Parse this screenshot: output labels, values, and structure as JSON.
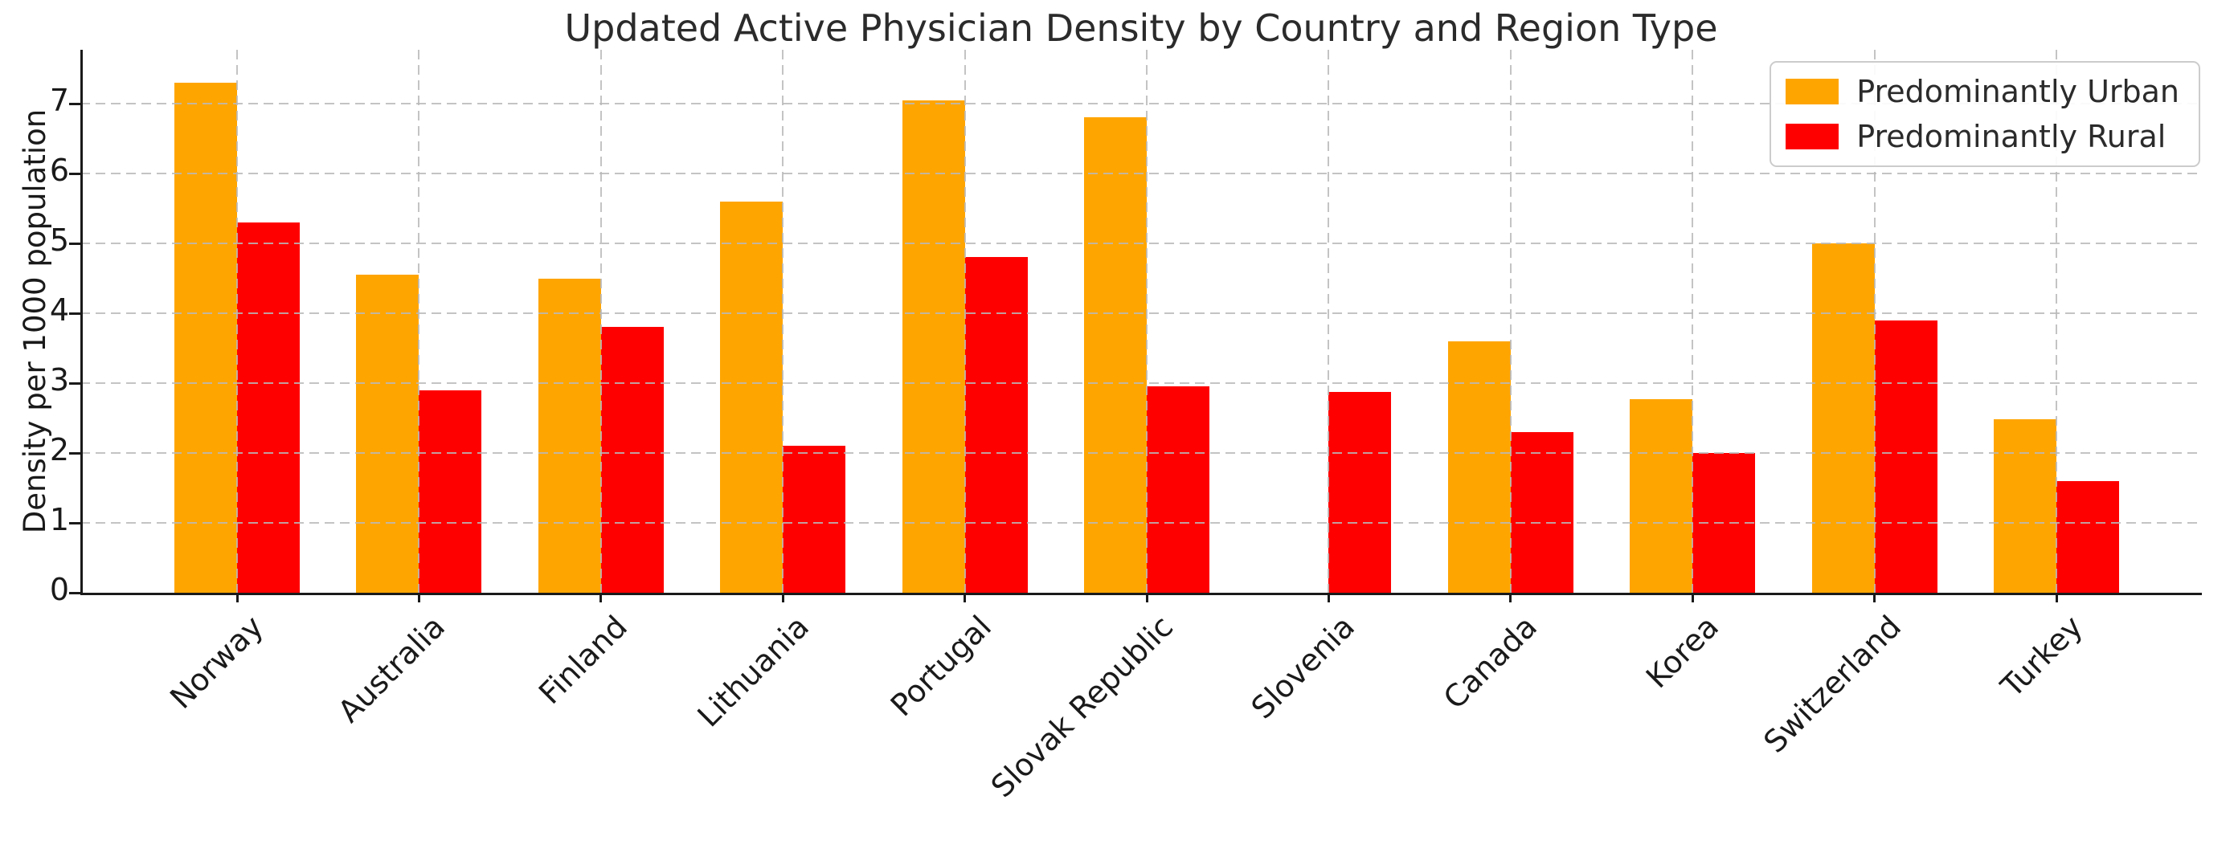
{
  "chart_data": {
    "type": "bar",
    "title": "Updated Active Physician Density by Country and Region Type",
    "xlabel": "",
    "ylabel": "Density per 1000 population",
    "categories": [
      "Norway",
      "Australia",
      "Finland",
      "Lithuania",
      "Portugal",
      "Slovak Republic",
      "Slovenia",
      "Canada",
      "Korea",
      "Switzerland",
      "Turkey"
    ],
    "series": [
      {
        "name": "Predominantly Urban",
        "color": "#FFA500",
        "values": [
          7.3,
          4.55,
          4.5,
          5.6,
          7.05,
          6.8,
          null,
          3.6,
          2.77,
          5.0,
          2.48
        ]
      },
      {
        "name": "Predominantly Rural",
        "color": "#FF0000",
        "values": [
          5.3,
          2.9,
          3.8,
          2.1,
          4.8,
          2.95,
          2.87,
          2.3,
          2.0,
          3.9,
          1.6
        ]
      }
    ],
    "yticks": [
      0,
      1,
      2,
      3,
      4,
      5,
      6,
      7
    ],
    "ylim": [
      0,
      7.77
    ],
    "grid": true,
    "grid_style": "dashed",
    "legend_position": "upper right",
    "background_color": "#ffffff",
    "text_color": "#2b2b2b"
  }
}
